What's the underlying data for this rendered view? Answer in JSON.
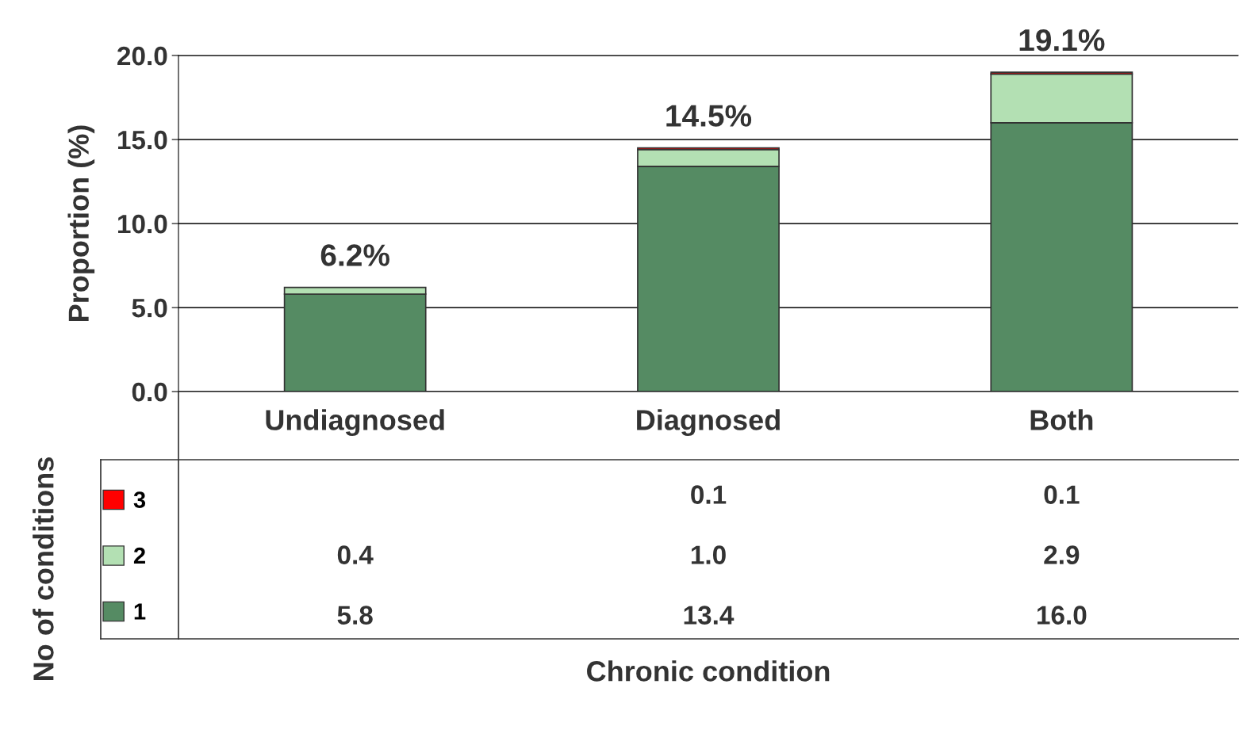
{
  "chart_data": {
    "type": "bar",
    "stacked": true,
    "categories": [
      "Undiagnosed",
      "Diagnosed",
      "Both"
    ],
    "series": [
      {
        "name": "1",
        "color": "#558b63",
        "values": [
          5.8,
          13.4,
          16.0
        ],
        "value_labels": [
          "5.8",
          "13.4",
          "16.0"
        ]
      },
      {
        "name": "2",
        "color": "#b3e0b3",
        "values": [
          0.4,
          1.0,
          2.9
        ],
        "value_labels": [
          "0.4",
          "1.0",
          "2.9"
        ]
      },
      {
        "name": "3",
        "color": "#ff0000",
        "values": [
          null,
          0.1,
          0.1
        ],
        "value_labels": [
          null,
          "0.1",
          "0.1"
        ]
      }
    ],
    "ylim": [
      0,
      20
    ],
    "yticks": [
      {
        "value": 0,
        "label": "0.0"
      },
      {
        "value": 5,
        "label": "5.0"
      },
      {
        "value": 10,
        "label": "10.0"
      },
      {
        "value": 15,
        "label": "15.0"
      },
      {
        "value": 20,
        "label": "20.0"
      }
    ],
    "ylabel": "Proportion (%)",
    "annotations": [
      "Chronic condition"
    ],
    "legend_title": "No of conditions",
    "totals": [
      "6.2%",
      "14.5%",
      "19.1%"
    ],
    "grid": "y",
    "legend": "bottom"
  }
}
